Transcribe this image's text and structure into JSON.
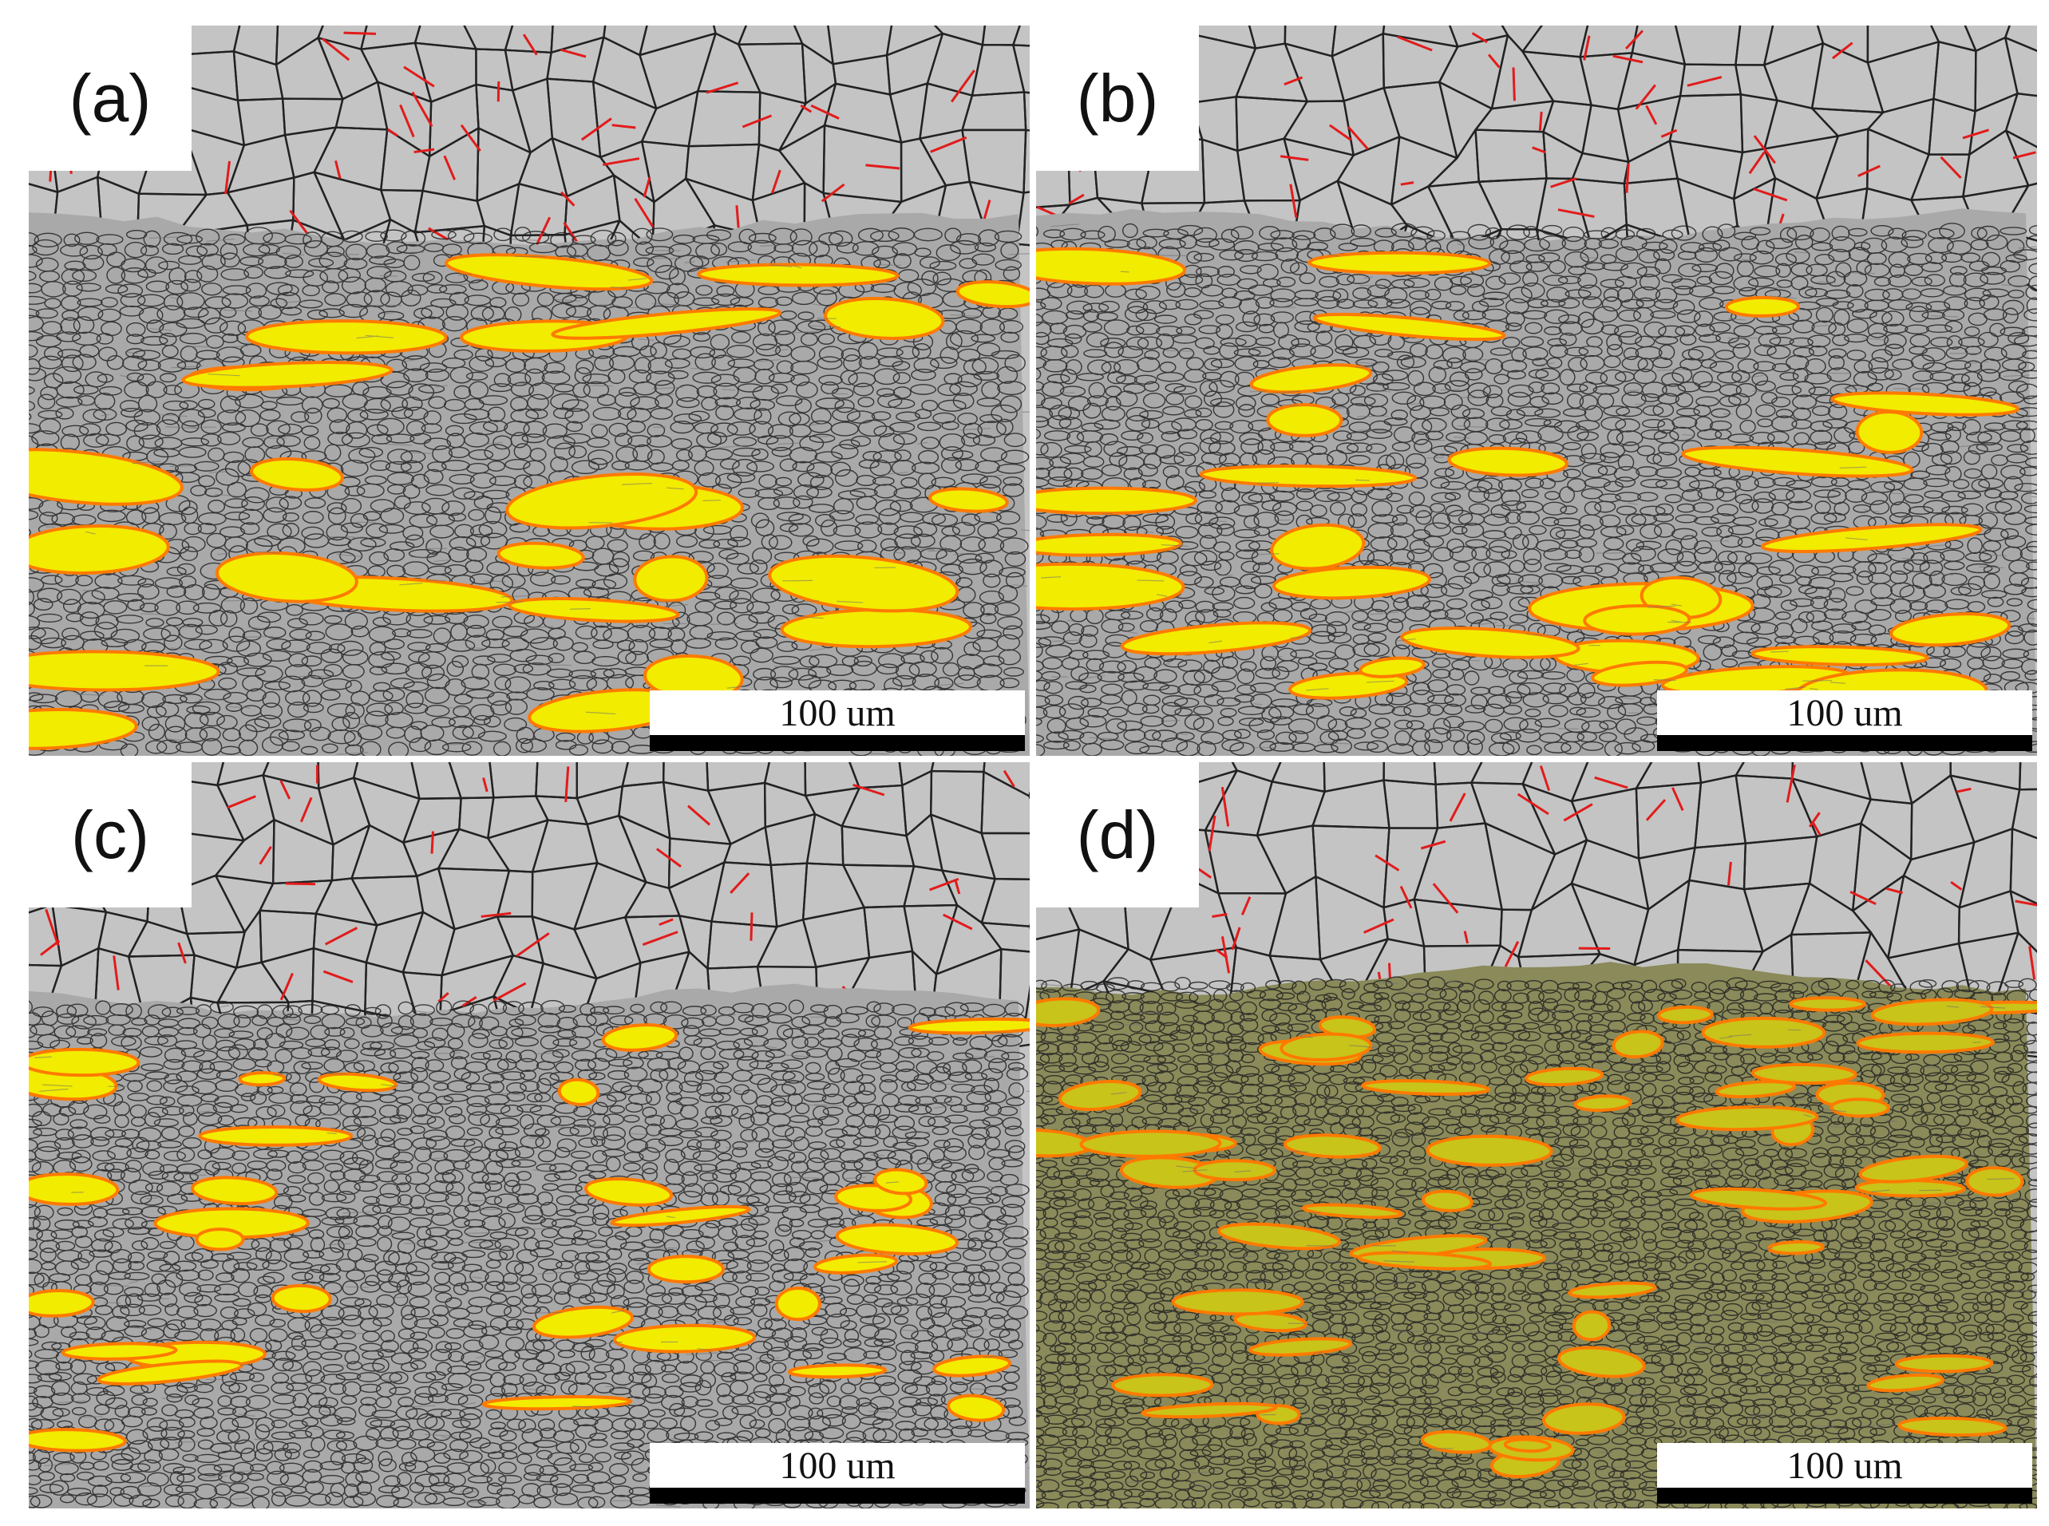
{
  "figure": {
    "panels": [
      {
        "id": "a",
        "label": "(a)",
        "scale_bar": "100 um"
      },
      {
        "id": "b",
        "label": "(b)",
        "scale_bar": "100 um"
      },
      {
        "id": "c",
        "label": "(c)",
        "scale_bar": "100 um"
      },
      {
        "id": "d",
        "label": "(d)",
        "scale_bar": "100 um"
      }
    ],
    "colors": {
      "matrix": "#c4c4c4",
      "grain_boundary": "#222222",
      "twin_boundary": "#e21b1b",
      "highlight_phase": "#f2ec00",
      "highlight_outline": "#ff7a00",
      "dark_band": "#6f6f6f"
    }
  }
}
